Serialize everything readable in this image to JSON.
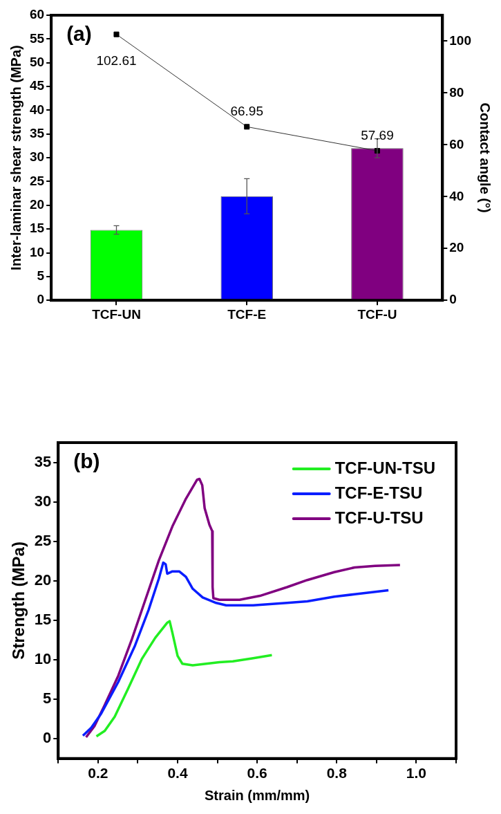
{
  "chart_data": [
    {
      "type": "bar",
      "annotations": [
        "(a)"
      ],
      "categories": [
        "TCF-UN",
        "TCF-E",
        "TCF-U"
      ],
      "ylabel": "Inter-laminar shear strength (MPa)",
      "y2label": "Contact angle (°)",
      "series": [
        {
          "type": "bar",
          "colors": [
            "#00ff00",
            "#0000ff",
            "#800080"
          ],
          "values": [
            14.8,
            21.9,
            32.0
          ],
          "errors": [
            0.9,
            3.7,
            2.0
          ]
        },
        {
          "type": "line",
          "axis": "y2",
          "color": "#000000",
          "marker": "square",
          "values": [
            102.61,
            66.95,
            57.69
          ],
          "value_labels": [
            "102.61",
            "66.95",
            "57.69"
          ]
        }
      ],
      "ylim": [
        0,
        60
      ],
      "yticks": [
        0,
        5,
        10,
        15,
        20,
        25,
        30,
        35,
        40,
        45,
        50,
        55,
        60
      ],
      "y2lim": [
        0,
        110
      ],
      "y2ticks": [
        0,
        20,
        40,
        60,
        80,
        100
      ],
      "grid": false,
      "legend": false
    },
    {
      "type": "line",
      "annotations": [
        "(b)"
      ],
      "xlabel": "Strain (mm/mm)",
      "ylabel": "Strength (MPa)",
      "legend": "top right",
      "grid": false,
      "marker": "none",
      "series": [
        {
          "name": "TCF-UN-TSU",
          "color": "#22ee22",
          "x": [
            0.196,
            0.217,
            0.242,
            0.276,
            0.31,
            0.344,
            0.374,
            0.38,
            0.387,
            0.4,
            0.412,
            0.438,
            0.505,
            0.539,
            0.59,
            0.637
          ],
          "values": [
            0.3,
            1.0,
            2.8,
            6.4,
            10.1,
            12.8,
            14.7,
            14.9,
            13.4,
            10.5,
            9.5,
            9.3,
            9.7,
            9.8,
            10.2,
            10.6
          ]
        },
        {
          "name": "TCF-E-TSU",
          "color": "#0a1eff",
          "x": [
            0.162,
            0.183,
            0.208,
            0.251,
            0.293,
            0.327,
            0.353,
            0.364,
            0.37,
            0.374,
            0.387,
            0.404,
            0.421,
            0.438,
            0.463,
            0.497,
            0.522,
            0.59,
            0.675,
            0.726,
            0.794,
            0.845,
            0.93
          ],
          "values": [
            0.4,
            1.4,
            3.2,
            7.2,
            11.8,
            16.3,
            20.3,
            22.3,
            22.1,
            20.9,
            21.2,
            21.2,
            20.5,
            19.0,
            17.9,
            17.2,
            16.9,
            16.9,
            17.2,
            17.4,
            18.0,
            18.3,
            18.8
          ]
        },
        {
          "name": "TCF-U-TSU",
          "color": "#800080",
          "x": [
            0.17,
            0.191,
            0.217,
            0.251,
            0.285,
            0.319,
            0.353,
            0.387,
            0.421,
            0.449,
            0.455,
            0.462,
            0.468,
            0.48,
            0.487,
            0.488,
            0.49,
            0.505,
            0.556,
            0.607,
            0.675,
            0.726,
            0.794,
            0.845,
            0.896,
            0.959
          ],
          "values": [
            0.2,
            1.6,
            4.3,
            8.0,
            12.6,
            17.6,
            22.6,
            26.9,
            30.4,
            32.8,
            32.9,
            32.1,
            29.2,
            27.1,
            26.3,
            19.2,
            17.8,
            17.6,
            17.6,
            18.1,
            19.2,
            20.1,
            21.1,
            21.7,
            21.9,
            22.0
          ]
        }
      ],
      "xlim": [
        0.1,
        1.1
      ],
      "xticks": [
        {
          "value": 0.1,
          "label": null
        },
        0.2,
        {
          "value": 0.3,
          "label": null
        },
        0.4,
        {
          "value": 0.5,
          "label": null
        },
        0.6,
        {
          "value": 0.7,
          "label": null
        },
        0.8,
        {
          "value": 0.9,
          "label": null
        },
        {
          "value": 1.0,
          "label": "1.0"
        },
        {
          "value": 1.1,
          "label": null
        }
      ],
      "ylim": [
        -2.5,
        37.5
      ],
      "yticks": [
        0,
        5,
        10,
        15,
        20,
        25,
        30,
        35
      ]
    }
  ]
}
